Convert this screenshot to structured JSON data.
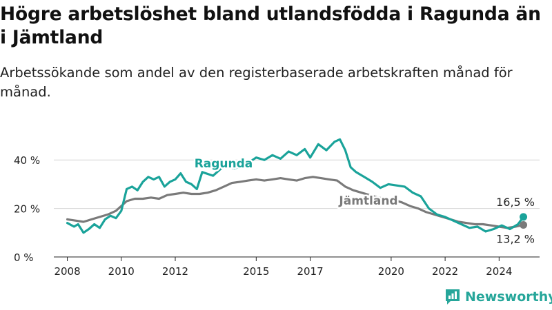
{
  "title": "Högre arbetslöshet bland utlandsfödda i Ragunda än i Jämtland",
  "subtitle": "Arbetssökande som andel av den registerbaserade arbetskraften månad för månad.",
  "brand": {
    "name": "Newsworthy",
    "logo_icon": "newsworthy-logo-icon"
  },
  "colors": {
    "ragunda": "#1aa39a",
    "jamtland": "#7a7a7a",
    "grid": "#d5d5d5",
    "axis": "#222222"
  },
  "chart_data": {
    "type": "line",
    "title": "Högre arbetslöshet bland utlandsfödda i Ragunda än i Jämtland",
    "subtitle": "Arbetssökande som andel av den registerbaserade arbetskraften månad för månad.",
    "xlabel": "",
    "ylabel": "",
    "ylim": [
      0,
      50
    ],
    "yticks": [
      0,
      20,
      40
    ],
    "ytick_labels": [
      "0 %",
      "20 %",
      "40 %"
    ],
    "xlim": [
      2007.5,
      2025.5
    ],
    "xticks": [
      2008,
      2010,
      2012,
      2015,
      2017,
      2020,
      2022,
      2024
    ],
    "xtick_labels": [
      "2008",
      "2010",
      "2012",
      "2015",
      "2017",
      "2020",
      "2022",
      "2024"
    ],
    "grid": true,
    "series": [
      {
        "name": "Ragunda",
        "end_label": "16,5 %",
        "points": [
          [
            2008.0,
            14.0
          ],
          [
            2008.25,
            12.5
          ],
          [
            2008.4,
            13.5
          ],
          [
            2008.6,
            10.0
          ],
          [
            2008.8,
            11.5
          ],
          [
            2009.0,
            13.5
          ],
          [
            2009.2,
            12.0
          ],
          [
            2009.4,
            15.5
          ],
          [
            2009.6,
            17.0
          ],
          [
            2009.8,
            16.0
          ],
          [
            2010.0,
            19.0
          ],
          [
            2010.2,
            28.0
          ],
          [
            2010.4,
            29.0
          ],
          [
            2010.6,
            27.5
          ],
          [
            2010.8,
            31.0
          ],
          [
            2011.0,
            33.0
          ],
          [
            2011.2,
            32.0
          ],
          [
            2011.4,
            33.0
          ],
          [
            2011.6,
            29.0
          ],
          [
            2011.8,
            31.0
          ],
          [
            2012.0,
            32.0
          ],
          [
            2012.2,
            34.5
          ],
          [
            2012.4,
            31.0
          ],
          [
            2012.6,
            30.0
          ],
          [
            2012.8,
            28.0
          ],
          [
            2013.0,
            35.0
          ],
          [
            2013.4,
            33.5
          ],
          [
            2013.8,
            37.5
          ],
          [
            2014.2,
            36.5
          ],
          [
            2014.6,
            38.0
          ],
          [
            2015.0,
            41.0
          ],
          [
            2015.3,
            40.0
          ],
          [
            2015.6,
            42.0
          ],
          [
            2015.9,
            40.5
          ],
          [
            2016.2,
            43.5
          ],
          [
            2016.5,
            42.0
          ],
          [
            2016.8,
            44.5
          ],
          [
            2017.0,
            41.0
          ],
          [
            2017.3,
            46.5
          ],
          [
            2017.6,
            44.0
          ],
          [
            2017.9,
            47.5
          ],
          [
            2018.1,
            48.5
          ],
          [
            2018.3,
            44.0
          ],
          [
            2018.5,
            37.0
          ],
          [
            2018.7,
            35.0
          ],
          [
            2019.0,
            33.0
          ],
          [
            2019.3,
            31.0
          ],
          [
            2019.6,
            28.5
          ],
          [
            2019.9,
            30.0
          ],
          [
            2020.2,
            29.5
          ],
          [
            2020.5,
            29.0
          ],
          [
            2020.8,
            26.5
          ],
          [
            2021.1,
            25.0
          ],
          [
            2021.4,
            20.0
          ],
          [
            2021.7,
            17.5
          ],
          [
            2022.0,
            16.5
          ],
          [
            2022.3,
            15.0
          ],
          [
            2022.6,
            13.5
          ],
          [
            2022.9,
            12.0
          ],
          [
            2023.2,
            12.5
          ],
          [
            2023.5,
            10.5
          ],
          [
            2023.8,
            11.5
          ],
          [
            2024.1,
            13.0
          ],
          [
            2024.4,
            11.5
          ],
          [
            2024.7,
            13.5
          ],
          [
            2024.9,
            16.5
          ]
        ]
      },
      {
        "name": "Jämtland",
        "end_label": "13,2 %",
        "points": [
          [
            2008.0,
            15.5
          ],
          [
            2008.3,
            15.0
          ],
          [
            2008.6,
            14.5
          ],
          [
            2008.9,
            15.5
          ],
          [
            2009.2,
            16.5
          ],
          [
            2009.5,
            17.5
          ],
          [
            2009.8,
            19.0
          ],
          [
            2010.0,
            21.0
          ],
          [
            2010.2,
            23.0
          ],
          [
            2010.5,
            24.0
          ],
          [
            2010.8,
            24.0
          ],
          [
            2011.1,
            24.5
          ],
          [
            2011.4,
            24.0
          ],
          [
            2011.7,
            25.5
          ],
          [
            2012.0,
            26.0
          ],
          [
            2012.3,
            26.5
          ],
          [
            2012.6,
            26.0
          ],
          [
            2012.9,
            26.0
          ],
          [
            2013.2,
            26.5
          ],
          [
            2013.5,
            27.5
          ],
          [
            2013.8,
            29.0
          ],
          [
            2014.1,
            30.5
          ],
          [
            2014.4,
            31.0
          ],
          [
            2014.7,
            31.5
          ],
          [
            2015.0,
            32.0
          ],
          [
            2015.3,
            31.5
          ],
          [
            2015.6,
            32.0
          ],
          [
            2015.9,
            32.5
          ],
          [
            2016.2,
            32.0
          ],
          [
            2016.5,
            31.5
          ],
          [
            2016.8,
            32.5
          ],
          [
            2017.1,
            33.0
          ],
          [
            2017.4,
            32.5
          ],
          [
            2017.7,
            32.0
          ],
          [
            2018.0,
            31.5
          ],
          [
            2018.3,
            29.0
          ],
          [
            2018.6,
            27.5
          ],
          [
            2018.9,
            26.5
          ],
          [
            2019.2,
            25.5
          ],
          [
            2019.5,
            24.5
          ],
          [
            2019.8,
            24.0
          ],
          [
            2020.1,
            23.5
          ],
          [
            2020.4,
            22.5
          ],
          [
            2020.7,
            21.0
          ],
          [
            2021.0,
            20.0
          ],
          [
            2021.3,
            18.5
          ],
          [
            2021.6,
            17.5
          ],
          [
            2021.9,
            16.5
          ],
          [
            2022.2,
            15.5
          ],
          [
            2022.5,
            14.5
          ],
          [
            2022.8,
            14.0
          ],
          [
            2023.1,
            13.5
          ],
          [
            2023.4,
            13.5
          ],
          [
            2023.7,
            13.0
          ],
          [
            2024.0,
            12.5
          ],
          [
            2024.3,
            12.0
          ],
          [
            2024.6,
            12.5
          ],
          [
            2024.9,
            13.2
          ]
        ]
      }
    ],
    "inline_labels": [
      "Ragunda",
      "Jämtland"
    ]
  }
}
